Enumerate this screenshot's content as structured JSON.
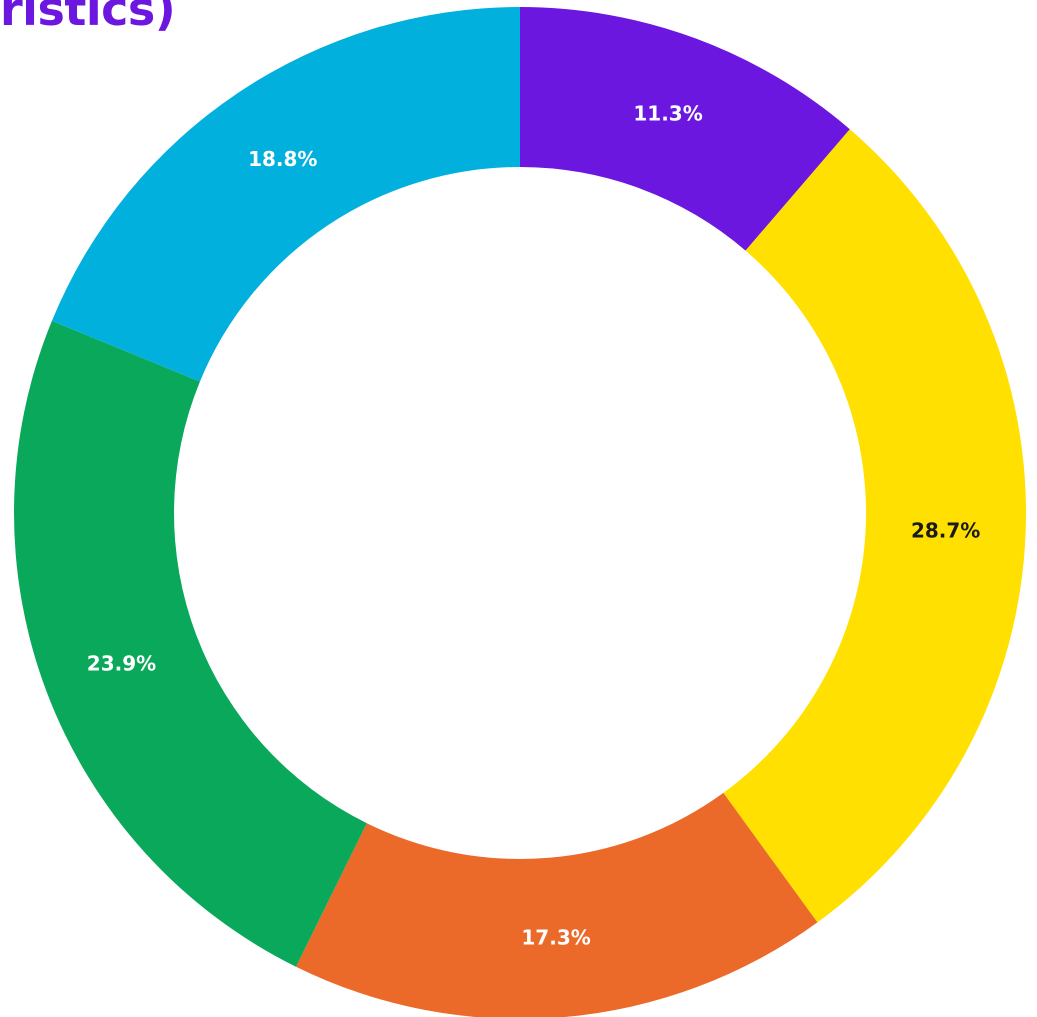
{
  "title": "ristics)",
  "chart_data": {
    "type": "pie",
    "style": "donut",
    "slices": [
      {
        "label": "11.3%",
        "value": 11.3,
        "color": "#6c17e0",
        "label_color": "#ffffff"
      },
      {
        "label": "28.7%",
        "value": 28.7,
        "color": "#ffe000",
        "label_color": "#1a1a1a"
      },
      {
        "label": "17.3%",
        "value": 17.3,
        "color": "#eb6a29",
        "label_color": "#ffffff"
      },
      {
        "label": "23.9%",
        "value": 23.9,
        "color": "#0aa85a",
        "label_color": "#ffffff"
      },
      {
        "label": "18.8%",
        "value": 18.8,
        "color": "#02b0de",
        "label_color": "#ffffff"
      }
    ]
  }
}
